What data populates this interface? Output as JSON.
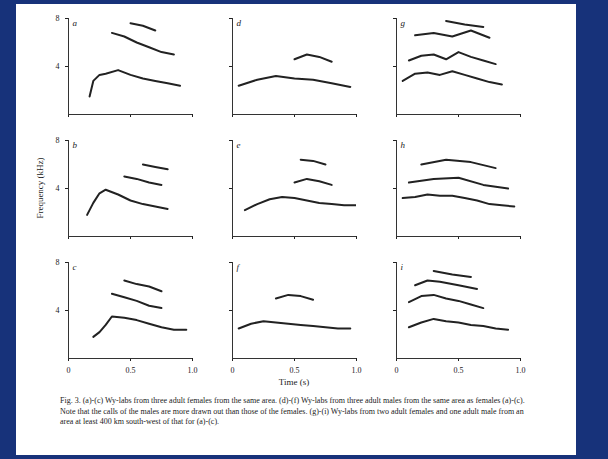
{
  "caption": "Fig. 3. (a)-(c) Wy-labs from three adult females from the same area. (d)-(f) Wy-labs from three adult males from the same area as females (a)-(c). Note that the calls of the males are more drawn out than those of the females. (g)-(i) Wy-labs from two adult females and one adult male from an area at least 400 km south-west of that for (a)-(c).",
  "chart_data": [
    {
      "type": "line",
      "title": "a",
      "color": "#222222",
      "xlim": [
        0,
        1
      ],
      "ylim": [
        0,
        8
      ],
      "xticks": [
        0,
        0.5,
        {
          "value": 1,
          "label": "1.0"
        }
      ],
      "yticks": [
        4,
        8
      ],
      "tick_labels": "y",
      "series": [
        {
          "x": [
            0.17,
            0.2,
            0.25,
            0.3,
            0.4,
            0.5,
            0.6,
            0.7,
            0.8,
            0.9
          ],
          "values": [
            1.5,
            2.8,
            3.3,
            3.4,
            3.7,
            3.3,
            3.0,
            2.8,
            2.6,
            2.4
          ]
        },
        {
          "x": [
            0.35,
            0.45,
            0.55,
            0.65,
            0.75,
            0.85
          ],
          "values": [
            6.8,
            6.5,
            6.0,
            5.6,
            5.2,
            5.0
          ]
        },
        {
          "x": [
            0.5,
            0.6,
            0.7
          ],
          "values": [
            7.6,
            7.4,
            7.0
          ]
        }
      ]
    },
    {
      "type": "line",
      "title": "b",
      "color": "#222222",
      "xlim": [
        0,
        1
      ],
      "ylim": [
        0,
        8
      ],
      "xticks": [
        0,
        0.5,
        {
          "value": 1,
          "label": "1.0"
        }
      ],
      "yticks": [
        4,
        8
      ],
      "tick_labels": "y",
      "y_label": "Frequency (kHz)",
      "series": [
        {
          "x": [
            0.15,
            0.2,
            0.25,
            0.3,
            0.4,
            0.5,
            0.6,
            0.7,
            0.8
          ],
          "values": [
            1.8,
            2.8,
            3.6,
            3.9,
            3.5,
            3.0,
            2.7,
            2.5,
            2.3
          ]
        },
        {
          "x": [
            0.45,
            0.55,
            0.65,
            0.75
          ],
          "values": [
            5.0,
            4.8,
            4.5,
            4.3
          ]
        },
        {
          "x": [
            0.6,
            0.7,
            0.8
          ],
          "values": [
            6.0,
            5.8,
            5.6
          ]
        }
      ]
    },
    {
      "type": "line",
      "title": "c",
      "color": "#222222",
      "xlim": [
        0,
        1
      ],
      "ylim": [
        0,
        8
      ],
      "xticks": [
        0,
        0.5,
        {
          "value": 1,
          "label": "1.0"
        }
      ],
      "yticks": [
        4,
        8
      ],
      "tick_labels": true,
      "series": [
        {
          "x": [
            0.2,
            0.25,
            0.3,
            0.35,
            0.45,
            0.55,
            0.65,
            0.75,
            0.85,
            0.95
          ],
          "values": [
            1.8,
            2.2,
            2.8,
            3.5,
            3.4,
            3.2,
            2.9,
            2.6,
            2.4,
            2.4
          ]
        },
        {
          "x": [
            0.35,
            0.45,
            0.55,
            0.65,
            0.75
          ],
          "values": [
            5.4,
            5.1,
            4.8,
            4.4,
            4.2
          ]
        },
        {
          "x": [
            0.45,
            0.55,
            0.65,
            0.75
          ],
          "values": [
            6.5,
            6.2,
            6.0,
            5.6
          ]
        }
      ]
    },
    {
      "type": "line",
      "title": "d",
      "color": "#222222",
      "xlim": [
        0,
        1
      ],
      "ylim": [
        0,
        8
      ],
      "xticks": [
        0,
        0.5,
        {
          "value": 1,
          "label": "1.0"
        }
      ],
      "yticks": [
        4,
        8
      ],
      "tick_labels": false,
      "series": [
        {
          "x": [
            0.05,
            0.2,
            0.35,
            0.5,
            0.65,
            0.8,
            0.95
          ],
          "values": [
            2.4,
            2.9,
            3.2,
            3.0,
            2.9,
            2.6,
            2.3
          ]
        },
        {
          "x": [
            0.5,
            0.6,
            0.7,
            0.8
          ],
          "values": [
            4.6,
            5.0,
            4.8,
            4.4
          ]
        }
      ]
    },
    {
      "type": "line",
      "title": "e",
      "color": "#222222",
      "xlim": [
        0,
        1
      ],
      "ylim": [
        0,
        8
      ],
      "xticks": [
        0,
        0.5,
        {
          "value": 1,
          "label": "1.0"
        }
      ],
      "yticks": [
        4,
        8
      ],
      "tick_labels": false,
      "series": [
        {
          "x": [
            0.1,
            0.2,
            0.3,
            0.4,
            0.5,
            0.6,
            0.7,
            0.8,
            0.9,
            1.0
          ],
          "values": [
            2.2,
            2.7,
            3.1,
            3.3,
            3.2,
            3.0,
            2.8,
            2.7,
            2.6,
            2.6
          ]
        },
        {
          "x": [
            0.5,
            0.6,
            0.7,
            0.8
          ],
          "values": [
            4.5,
            4.8,
            4.6,
            4.3
          ]
        },
        {
          "x": [
            0.55,
            0.65,
            0.75
          ],
          "values": [
            6.4,
            6.3,
            6.0
          ]
        }
      ]
    },
    {
      "type": "line",
      "title": "f",
      "color": "#222222",
      "xlim": [
        0,
        1
      ],
      "ylim": [
        0,
        8
      ],
      "xticks": [
        0,
        0.5,
        {
          "value": 1,
          "label": "1.0"
        }
      ],
      "yticks": [
        4,
        8
      ],
      "tick_labels": "x",
      "x_label": "Time (s)",
      "series": [
        {
          "x": [
            0.05,
            0.15,
            0.25,
            0.35,
            0.45,
            0.55,
            0.65,
            0.75,
            0.85,
            0.95
          ],
          "values": [
            2.5,
            2.9,
            3.1,
            3.0,
            2.9,
            2.8,
            2.7,
            2.6,
            2.5,
            2.5
          ]
        },
        {
          "x": [
            0.35,
            0.45,
            0.55,
            0.65
          ],
          "values": [
            5.0,
            5.3,
            5.2,
            4.9
          ]
        }
      ]
    },
    {
      "type": "line",
      "title": "g",
      "color": "#222222",
      "xlim": [
        0,
        1
      ],
      "ylim": [
        0,
        8
      ],
      "xticks": [
        0,
        0.5,
        {
          "value": 1,
          "label": "1.0"
        }
      ],
      "yticks": [
        4,
        8
      ],
      "tick_labels": false,
      "series": [
        {
          "x": [
            0.05,
            0.15,
            0.25,
            0.35,
            0.45,
            0.55,
            0.65,
            0.75,
            0.85
          ],
          "values": [
            2.8,
            3.4,
            3.5,
            3.3,
            3.6,
            3.3,
            3.0,
            2.7,
            2.5
          ]
        },
        {
          "x": [
            0.1,
            0.2,
            0.3,
            0.4,
            0.5,
            0.6,
            0.7,
            0.8
          ],
          "values": [
            4.5,
            4.9,
            5.0,
            4.6,
            5.2,
            4.8,
            4.5,
            4.2
          ]
        },
        {
          "x": [
            0.15,
            0.3,
            0.45,
            0.6,
            0.75
          ],
          "values": [
            6.6,
            6.8,
            6.5,
            7.0,
            6.4
          ]
        },
        {
          "x": [
            0.4,
            0.55,
            0.7
          ],
          "values": [
            7.8,
            7.5,
            7.3
          ]
        }
      ]
    },
    {
      "type": "line",
      "title": "h",
      "color": "#222222",
      "xlim": [
        0,
        1
      ],
      "ylim": [
        0,
        8
      ],
      "xticks": [
        0,
        0.5,
        {
          "value": 1,
          "label": "1.0"
        }
      ],
      "yticks": [
        4,
        8
      ],
      "tick_labels": false,
      "series": [
        {
          "x": [
            0.05,
            0.15,
            0.25,
            0.35,
            0.45,
            0.55,
            0.65,
            0.75,
            0.85,
            0.95
          ],
          "values": [
            3.2,
            3.3,
            3.5,
            3.4,
            3.4,
            3.2,
            3.0,
            2.7,
            2.6,
            2.5
          ]
        },
        {
          "x": [
            0.1,
            0.3,
            0.5,
            0.7,
            0.9
          ],
          "values": [
            4.5,
            4.8,
            4.9,
            4.3,
            4.0
          ]
        },
        {
          "x": [
            0.2,
            0.4,
            0.6,
            0.8
          ],
          "values": [
            6.0,
            6.4,
            6.2,
            5.7
          ]
        }
      ]
    },
    {
      "type": "line",
      "title": "i",
      "color": "#222222",
      "xlim": [
        0,
        1
      ],
      "ylim": [
        0,
        8
      ],
      "xticks": [
        0,
        0.5,
        {
          "value": 1,
          "label": "1.0"
        }
      ],
      "yticks": [
        4,
        8
      ],
      "tick_labels": "x",
      "series": [
        {
          "x": [
            0.1,
            0.2,
            0.3,
            0.4,
            0.5,
            0.6,
            0.7,
            0.8,
            0.9
          ],
          "values": [
            2.6,
            3.0,
            3.3,
            3.1,
            3.0,
            2.8,
            2.7,
            2.5,
            2.4
          ]
        },
        {
          "x": [
            0.1,
            0.2,
            0.3,
            0.4,
            0.5,
            0.6,
            0.7
          ],
          "values": [
            4.7,
            5.2,
            5.3,
            5.0,
            4.8,
            4.5,
            4.2
          ]
        },
        {
          "x": [
            0.15,
            0.25,
            0.35,
            0.5,
            0.65
          ],
          "values": [
            6.1,
            6.5,
            6.4,
            6.1,
            5.8
          ]
        },
        {
          "x": [
            0.3,
            0.45,
            0.6
          ],
          "values": [
            7.3,
            7.0,
            6.8
          ]
        }
      ]
    }
  ]
}
